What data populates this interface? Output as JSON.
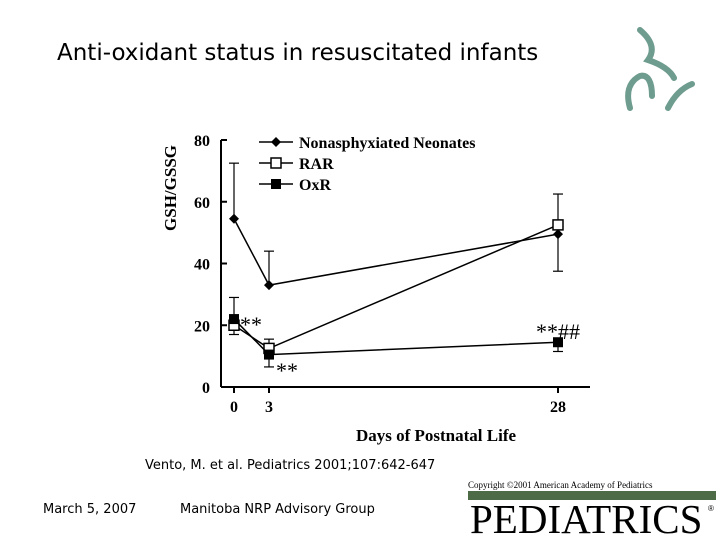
{
  "slide": {
    "title": "Anti-oxidant status in resuscitated infants",
    "citation": "Vento, M. et al. Pediatrics 2001;107:642-647",
    "copyright": "Copyright ©2001 American Academy of Pediatrics",
    "date": "March 5, 2007",
    "organization": "Manitoba NRP Advisory Group",
    "journal": "PEDIATRICS",
    "registered_mark": "®",
    "journal_color": "#4d6b46",
    "logo_color": "#6e9c8e"
  },
  "chart_data": {
    "type": "line",
    "ylabel": "GSH/GSSG",
    "xlabel": "Days of Postnatal Life",
    "ylim": [
      0,
      80
    ],
    "yticks": [
      0,
      20,
      40,
      60,
      80
    ],
    "xticks": [
      0,
      3,
      28
    ],
    "x": [
      0,
      3,
      28
    ],
    "series": [
      {
        "name": "Nonasphyxiated Neonates",
        "marker": "diamond",
        "values": [
          54.5,
          33,
          49.5
        ],
        "err_up": [
          18,
          11,
          0
        ],
        "err_down": [
          0,
          0,
          12
        ]
      },
      {
        "name": "RAR",
        "marker": "open-square",
        "values": [
          20,
          12.5,
          52.5
        ],
        "err_up": [
          0,
          3,
          10
        ],
        "err_down": [
          3,
          0,
          0
        ]
      },
      {
        "name": "OxR",
        "marker": "filled-square",
        "values": [
          22,
          10.5,
          14.5
        ],
        "err_up": [
          7,
          0,
          0
        ],
        "err_down": [
          0,
          4,
          3
        ]
      }
    ],
    "annotations": [
      "**",
      "**",
      "**##"
    ]
  }
}
